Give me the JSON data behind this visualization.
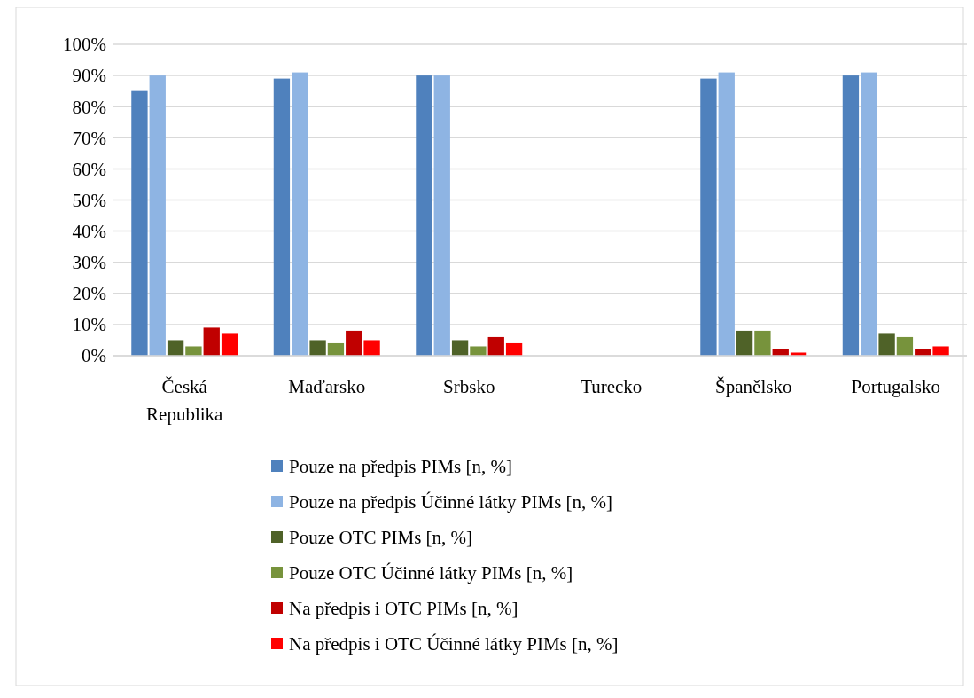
{
  "chart_data": {
    "type": "bar",
    "categories": [
      "Česká Republika",
      "Maďarsko",
      "Srbsko",
      "Turecko",
      "Španělsko",
      "Portugalsko"
    ],
    "series": [
      {
        "name": "Pouze na předpis PIMs [n, %]",
        "color": "#4f81bd",
        "values": [
          85,
          89,
          90,
          null,
          89,
          90
        ]
      },
      {
        "name": "Pouze na předpis Účinné látky PIMs [n, %]",
        "color": "#8eb4e3",
        "values": [
          90,
          91,
          90,
          null,
          91,
          91
        ]
      },
      {
        "name": "Pouze OTC PIMs [n, %]",
        "color": "#4f6228",
        "values": [
          5,
          5,
          5,
          null,
          8,
          7
        ]
      },
      {
        "name": "Pouze OTC Účinné látky PIMs [n, %]",
        "color": "#77933c",
        "values": [
          3,
          4,
          3,
          null,
          8,
          6
        ]
      },
      {
        "name": "Na předpis i OTC PIMs [n, %]",
        "color": "#c00000",
        "values": [
          9,
          8,
          6,
          null,
          2,
          2
        ]
      },
      {
        "name": "Na předpis i OTC Účinné látky PIMs [n, %]",
        "color": "#ff0000",
        "values": [
          7,
          5,
          4,
          null,
          1,
          3
        ]
      }
    ],
    "ylim": [
      0,
      100
    ],
    "yticks": [
      {
        "value": 0,
        "label": "0%"
      },
      {
        "value": 10,
        "label": "10%"
      },
      {
        "value": 20,
        "label": "20%"
      },
      {
        "value": 30,
        "label": "30%"
      },
      {
        "value": 40,
        "label": "40%"
      },
      {
        "value": 50,
        "label": "50%"
      },
      {
        "value": 60,
        "label": "60%"
      },
      {
        "value": 70,
        "label": "70%"
      },
      {
        "value": 80,
        "label": "80%"
      },
      {
        "value": 90,
        "label": "90%"
      },
      {
        "value": 100,
        "label": "100%"
      }
    ],
    "grid": "y",
    "legend": "bottom"
  }
}
